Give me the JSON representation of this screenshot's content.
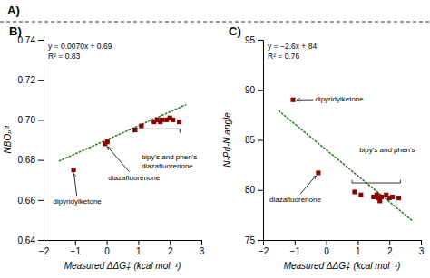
{
  "title": "A)",
  "chart_data": [
    {
      "type": "scatter",
      "title": "B)",
      "x_label": "Measured ΔΔG‡ (kcal mol⁻¹)",
      "y_label": "NBOₚᵈ",
      "xlim": [
        -2,
        3
      ],
      "ylim": [
        0.64,
        0.74
      ],
      "xticks": [
        {
          "value": -2,
          "label": "−2"
        },
        {
          "value": -1,
          "label": "−1"
        },
        0,
        1,
        2,
        3
      ],
      "yticks": [
        0.64,
        0.66,
        0.68,
        {
          "value": 0.7,
          "label": "0.70"
        },
        0.72,
        0.74
      ],
      "series": [
        {
          "type": "scatter",
          "marker": "square",
          "color": "#8B0000",
          "x": [
            -1.05,
            -0.05,
            0.02,
            0.9,
            1.1,
            1.5,
            1.6,
            1.7,
            1.75,
            1.9,
            2.0,
            2.1,
            2.3
          ],
          "values": [
            0.675,
            0.688,
            0.689,
            0.695,
            0.697,
            0.699,
            0.7,
            0.699,
            0.7,
            0.7,
            0.701,
            0.7,
            0.699
          ]
        },
        {
          "type": "line",
          "line_style": "dotted",
          "color": "#2e7d2e",
          "x": [
            -1.5,
            2.5
          ],
          "values": [
            0.6795,
            0.7075
          ]
        }
      ],
      "annotations": [
        {
          "lines": [
            "y = 0.0070x + 0.69",
            "R² = 0.83"
          ]
        },
        {
          "text": "dipyridylketone",
          "xy": [
            -1.05,
            0.675
          ],
          "xytext": [
            -1.7,
            0.659
          ]
        },
        {
          "text": "diazafluorenone",
          "xy": [
            -0.05,
            0.688
          ],
          "xytext": [
            0.05,
            0.671
          ]
        },
        {
          "lines": [
            "bipy's and phen's",
            "diazafluorenone"
          ],
          "x": [
            0.85,
            2.32
          ],
          "y": [
            0.6955,
            0.6935
          ],
          "xytext": [
            1.1,
            0.683
          ]
        }
      ]
    },
    {
      "type": "scatter",
      "title": "C)",
      "x_label": "Measured ΔΔG‡ (kcal mol⁻¹)",
      "y_label": "N-Pd-N angle",
      "xlim": [
        -2,
        3
      ],
      "ylim": [
        75,
        95
      ],
      "xticks": [
        {
          "value": -2,
          "label": "−2"
        },
        {
          "value": -1,
          "label": "−1"
        },
        0,
        1,
        2,
        3
      ],
      "yticks": [
        75,
        80,
        85,
        90,
        95
      ],
      "series": [
        {
          "type": "scatter",
          "marker": "square",
          "color": "#8B0000",
          "x": [
            -1.05,
            -0.25,
            0.9,
            1.1,
            1.5,
            1.6,
            1.65,
            1.7,
            1.75,
            1.9,
            2.0,
            2.1,
            2.3
          ],
          "values": [
            89.0,
            81.7,
            79.8,
            79.5,
            79.3,
            79.5,
            79.2,
            78.9,
            79.3,
            79.5,
            79.2,
            79.3,
            79.2
          ]
        },
        {
          "type": "line",
          "line_style": "dotted",
          "color": "#2e7d2e",
          "x": [
            -1.5,
            2.7
          ],
          "values": [
            87.9,
            77.0
          ]
        }
      ],
      "annotations": [
        {
          "lines": [
            "y = −2.6x + 84",
            "R² = 0.76"
          ]
        },
        {
          "text": "dipyridylketone",
          "xy": [
            -1.05,
            89.0
          ],
          "xytext": [
            -0.35,
            89.0
          ]
        },
        {
          "text": "diazafluorenone",
          "xy": [
            -0.25,
            81.7
          ],
          "xytext": [
            -1.8,
            79.0
          ]
        },
        {
          "lines": [
            "bipy's and phen's"
          ],
          "x": [
            0.82,
            2.35
          ],
          "y": [
            80.7,
            81.0
          ],
          "xytext": [
            1.05,
            83.8
          ]
        }
      ]
    }
  ]
}
